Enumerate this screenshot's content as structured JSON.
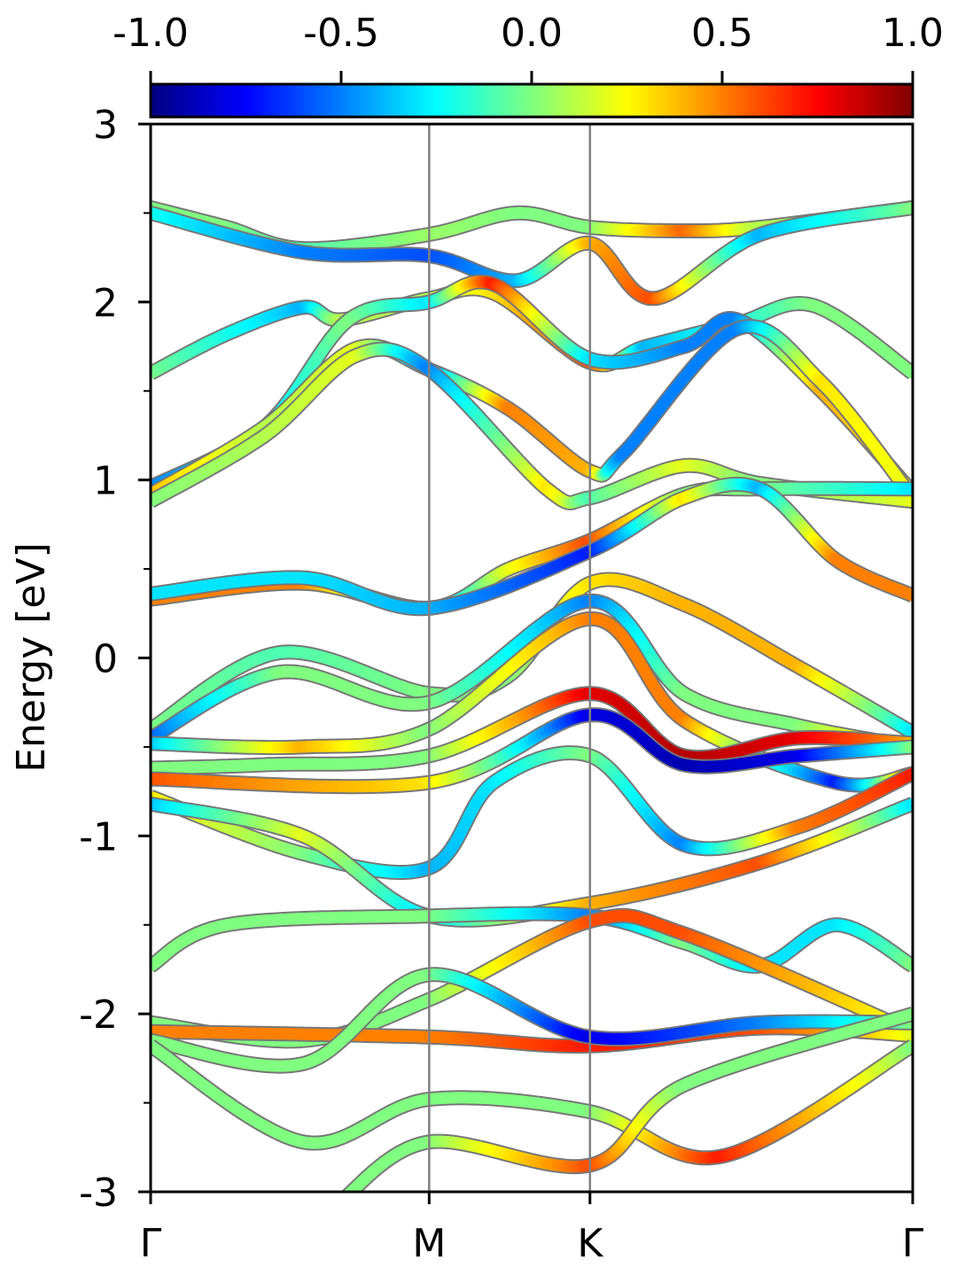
{
  "chart_data": {
    "type": "line",
    "ylabel": "Energy [eV]",
    "xlabel": "",
    "ylim": [
      -3,
      3
    ],
    "y_ticks": [
      "3",
      "2",
      "1",
      "0",
      "-1",
      "-2",
      "-3"
    ],
    "y_tick_values": [
      3,
      2,
      1,
      0,
      -1,
      -2,
      -3
    ],
    "y_minor_ticks": [
      2.5,
      1.5,
      0.5,
      -0.5,
      -1.5,
      -2.5
    ],
    "k_points": [
      {
        "label": "Γ",
        "x": 0.0
      },
      {
        "label": "M",
        "x": 0.3655
      },
      {
        "label": "K",
        "x": 0.5765
      },
      {
        "label": "Γ",
        "x": 1.0
      }
    ],
    "colorbar": {
      "range": [
        -1.0,
        1.0
      ],
      "ticks": [
        "-1.0",
        "-0.5",
        "0.0",
        "0.5",
        "1.0"
      ],
      "tick_values": [
        -1.0,
        -0.5,
        0.0,
        0.5,
        1.0
      ],
      "colormap": "jet",
      "colors": [
        "#00007f",
        "#0000ff",
        "#007fff",
        "#00ffff",
        "#7fff7f",
        "#ffff00",
        "#ff7f00",
        "#ff0000",
        "#7f0000"
      ]
    },
    "grid": false,
    "series": [
      {
        "points": [
          [
            0.0,
            2.53,
            0.0
          ],
          [
            0.1,
            2.42,
            0.0
          ],
          [
            0.2,
            2.3,
            -0.1
          ],
          [
            0.3655,
            2.38,
            0.05
          ],
          [
            0.48,
            2.5,
            0.0
          ],
          [
            0.5765,
            2.42,
            0.0
          ],
          [
            0.7,
            2.4,
            0.55
          ],
          [
            0.8,
            2.42,
            0.1
          ],
          [
            1.0,
            2.53,
            0.0
          ]
        ]
      },
      {
        "points": [
          [
            0.0,
            2.5,
            -0.2
          ],
          [
            0.2,
            2.28,
            -0.5
          ],
          [
            0.3655,
            2.26,
            -0.6
          ],
          [
            0.48,
            2.12,
            -0.4
          ],
          [
            0.5765,
            2.33,
            0.4
          ],
          [
            0.66,
            2.02,
            0.6
          ],
          [
            0.8,
            2.38,
            -0.4
          ],
          [
            1.0,
            2.53,
            0.0
          ]
        ]
      },
      {
        "points": [
          [
            0.0,
            1.6,
            0.0
          ],
          [
            0.1,
            1.82,
            -0.2
          ],
          [
            0.2,
            1.97,
            -0.4
          ],
          [
            0.25,
            1.9,
            0.1
          ],
          [
            0.3655,
            2.02,
            0.1
          ],
          [
            0.45,
            2.05,
            0.3
          ],
          [
            0.5765,
            1.66,
            0.6
          ],
          [
            0.65,
            1.75,
            -0.4
          ],
          [
            0.77,
            1.88,
            -0.2
          ],
          [
            0.87,
            1.98,
            0.0
          ],
          [
            1.0,
            1.6,
            0.0
          ]
        ]
      },
      {
        "points": [
          [
            0.0,
            0.96,
            -0.5
          ],
          [
            0.15,
            1.3,
            -0.3
          ],
          [
            0.26,
            1.9,
            0.0
          ],
          [
            0.3655,
            2.0,
            -0.3
          ],
          [
            0.45,
            2.1,
            0.7
          ],
          [
            0.5765,
            1.68,
            -0.3
          ],
          [
            0.7,
            1.75,
            -0.5
          ],
          [
            0.77,
            1.9,
            -0.5
          ],
          [
            0.88,
            1.5,
            0.4
          ],
          [
            1.0,
            0.93,
            0.3
          ]
        ]
      },
      {
        "points": [
          [
            0.0,
            0.92,
            0.4
          ],
          [
            0.15,
            1.3,
            0.1
          ],
          [
            0.27,
            1.74,
            0.2
          ],
          [
            0.3655,
            1.62,
            -0.5
          ],
          [
            0.47,
            1.4,
            0.5
          ],
          [
            0.5765,
            1.05,
            0.4
          ],
          [
            0.62,
            1.15,
            -0.5
          ],
          [
            0.77,
            1.85,
            -0.5
          ],
          [
            0.88,
            1.55,
            0.3
          ],
          [
            1.0,
            0.9,
            0.2
          ]
        ]
      },
      {
        "points": [
          [
            0.0,
            0.88,
            0.0
          ],
          [
            0.15,
            1.25,
            0.1
          ],
          [
            0.27,
            1.7,
            0.2
          ],
          [
            0.3655,
            1.62,
            -0.5
          ],
          [
            0.52,
            0.95,
            0.3
          ],
          [
            0.5765,
            0.9,
            -0.1
          ],
          [
            0.7,
            1.08,
            0.2
          ],
          [
            0.8,
            0.98,
            0.0
          ],
          [
            1.0,
            0.88,
            0.2
          ]
        ]
      },
      {
        "points": [
          [
            0.0,
            0.33,
            0.5
          ],
          [
            0.2,
            0.42,
            0.5
          ],
          [
            0.3655,
            0.28,
            -0.4
          ],
          [
            0.47,
            0.5,
            0.2
          ],
          [
            0.5765,
            0.66,
            0.6
          ],
          [
            0.7,
            0.92,
            0.0
          ],
          [
            0.8,
            0.95,
            0.0
          ],
          [
            1.0,
            0.95,
            -0.3
          ]
        ]
      },
      {
        "points": [
          [
            0.0,
            0.36,
            -0.3
          ],
          [
            0.2,
            0.45,
            -0.3
          ],
          [
            0.3655,
            0.28,
            -0.4
          ],
          [
            0.5765,
            0.6,
            -0.7
          ],
          [
            0.7,
            0.9,
            0.3
          ],
          [
            0.8,
            0.95,
            -0.4
          ],
          [
            0.9,
            0.55,
            0.5
          ],
          [
            1.0,
            0.35,
            0.5
          ]
        ]
      },
      {
        "points": [
          [
            0.0,
            -0.4,
            0.0
          ],
          [
            0.17,
            0.03,
            -0.1
          ],
          [
            0.3655,
            -0.2,
            0.0
          ],
          [
            0.47,
            -0.1,
            0.0
          ],
          [
            0.5765,
            0.42,
            0.3
          ],
          [
            0.7,
            0.3,
            0.4
          ],
          [
            0.85,
            -0.05,
            0.4
          ],
          [
            1.0,
            -0.42,
            -0.3
          ]
        ]
      },
      {
        "points": [
          [
            0.0,
            -0.45,
            -0.6
          ],
          [
            0.17,
            -0.08,
            0.0
          ],
          [
            0.3655,
            -0.25,
            0.0
          ],
          [
            0.5765,
            0.32,
            -0.5
          ],
          [
            0.7,
            -0.2,
            0.0
          ],
          [
            0.85,
            -0.38,
            0.0
          ],
          [
            1.0,
            -0.5,
            0.5
          ]
        ]
      },
      {
        "points": [
          [
            0.0,
            -0.48,
            -0.4
          ],
          [
            0.2,
            -0.5,
            0.4
          ],
          [
            0.3655,
            -0.4,
            0.0
          ],
          [
            0.5765,
            0.22,
            0.5
          ],
          [
            0.7,
            -0.35,
            0.5
          ],
          [
            0.9,
            -0.7,
            -0.7
          ],
          [
            1.0,
            -0.65,
            0.7
          ]
        ]
      },
      {
        "points": [
          [
            0.0,
            -0.62,
            0.0
          ],
          [
            0.15,
            -0.6,
            0.0
          ],
          [
            0.3655,
            -0.55,
            0.0
          ],
          [
            0.5765,
            -0.2,
            0.8
          ],
          [
            0.7,
            -0.55,
            0.9
          ],
          [
            0.85,
            -0.45,
            0.8
          ],
          [
            1.0,
            -0.48,
            0.4
          ]
        ]
      },
      {
        "points": [
          [
            0.0,
            -0.68,
            0.6
          ],
          [
            0.3655,
            -0.7,
            0.3
          ],
          [
            0.5765,
            -0.32,
            -0.8
          ],
          [
            0.7,
            -0.6,
            -0.9
          ],
          [
            0.85,
            -0.55,
            -0.8
          ],
          [
            1.0,
            -0.5,
            0.0
          ]
        ]
      },
      {
        "points": [
          [
            0.0,
            -0.78,
            0.3
          ],
          [
            0.2,
            -1.1,
            0.0
          ],
          [
            0.3655,
            -1.18,
            -0.4
          ],
          [
            0.45,
            -0.7,
            -0.3
          ],
          [
            0.5765,
            -0.55,
            0.0
          ],
          [
            0.7,
            -1.05,
            -0.5
          ],
          [
            0.85,
            -0.95,
            0.5
          ],
          [
            1.0,
            -0.65,
            0.7
          ]
        ]
      },
      {
        "points": [
          [
            0.0,
            -0.82,
            -0.4
          ],
          [
            0.2,
            -1.0,
            0.2
          ],
          [
            0.3655,
            -1.45,
            -0.3
          ],
          [
            0.5765,
            -1.38,
            0.4
          ],
          [
            0.8,
            -1.15,
            0.6
          ],
          [
            1.0,
            -0.82,
            -0.3
          ]
        ]
      },
      {
        "points": [
          [
            0.0,
            -1.73,
            0.0
          ],
          [
            0.1,
            -1.5,
            0.0
          ],
          [
            0.3655,
            -1.45,
            0.0
          ],
          [
            0.5765,
            -1.45,
            -0.5
          ],
          [
            0.7,
            -1.6,
            0.0
          ],
          [
            0.8,
            -1.73,
            -0.3
          ],
          [
            0.9,
            -1.5,
            -0.3
          ],
          [
            1.0,
            -1.73,
            0.0
          ]
        ]
      },
      {
        "points": [
          [
            0.0,
            -2.05,
            0.0
          ],
          [
            0.2,
            -2.15,
            0.0
          ],
          [
            0.3655,
            -1.92,
            0.0
          ],
          [
            0.5765,
            -1.48,
            0.6
          ],
          [
            0.7,
            -1.55,
            0.6
          ],
          [
            1.0,
            -2.1,
            0.2
          ]
        ]
      },
      {
        "points": [
          [
            0.0,
            -2.1,
            0.5
          ],
          [
            0.3655,
            -2.13,
            0.5
          ],
          [
            0.5765,
            -2.18,
            0.7
          ],
          [
            0.8,
            -2.08,
            0.6
          ],
          [
            1.0,
            -2.12,
            0.2
          ]
        ]
      },
      {
        "points": [
          [
            0.0,
            -2.15,
            0.0
          ],
          [
            0.2,
            -2.28,
            0.0
          ],
          [
            0.3655,
            -1.78,
            0.0
          ],
          [
            0.5765,
            -2.13,
            -0.8
          ],
          [
            0.8,
            -2.05,
            -0.5
          ],
          [
            1.0,
            -2.05,
            0.0
          ]
        ]
      },
      {
        "points": [
          [
            0.0,
            -2.18,
            0.0
          ],
          [
            0.2,
            -2.72,
            0.0
          ],
          [
            0.3655,
            -2.48,
            0.0
          ],
          [
            0.5765,
            -2.55,
            0.0
          ],
          [
            0.75,
            -2.8,
            0.7
          ],
          [
            1.0,
            -2.18,
            0.0
          ]
        ]
      },
      {
        "points": [
          [
            0.25,
            -3.05,
            0.0
          ],
          [
            0.3655,
            -2.72,
            0.0
          ],
          [
            0.5765,
            -2.85,
            0.6
          ],
          [
            0.7,
            -2.4,
            0.0
          ],
          [
            1.0,
            -2.0,
            0.0
          ]
        ]
      }
    ]
  }
}
